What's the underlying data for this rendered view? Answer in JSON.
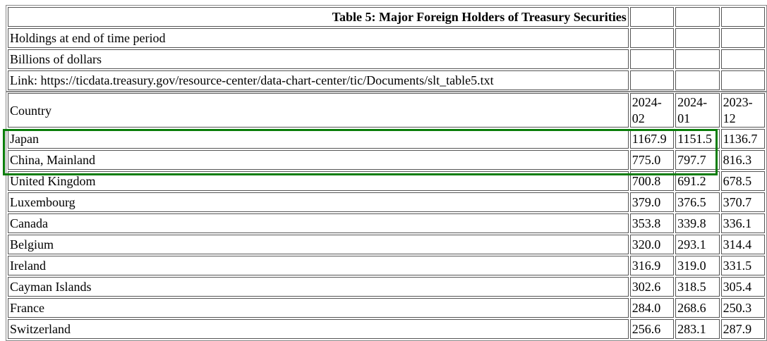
{
  "meta": {
    "title": "Table 5: Major Foreign Holders of Treasury Securities",
    "subtitle": "Holdings at end of time period",
    "units": "Billions of dollars",
    "link": "Link: https://ticdata.treasury.gov/resource-center/data-chart-center/tic/Documents/slt_table5.txt"
  },
  "columns": [
    "Country",
    "2024-02",
    "2024-01",
    "2023-12"
  ],
  "rows": [
    [
      "Japan",
      "1167.9",
      "1151.5",
      "1136.7"
    ],
    [
      "China, Mainland",
      "775.0",
      "797.7",
      "816.3"
    ],
    [
      "United Kingdom",
      "700.8",
      "691.2",
      "678.5"
    ],
    [
      "Luxembourg",
      "379.0",
      "376.5",
      "370.7"
    ],
    [
      "Canada",
      "353.8",
      "339.8",
      "336.1"
    ],
    [
      "Belgium",
      "320.0",
      "293.1",
      "314.4"
    ],
    [
      "Ireland",
      "316.9",
      "319.0",
      "331.5"
    ],
    [
      "Cayman Islands",
      "302.6",
      "318.5",
      "305.4"
    ],
    [
      "France",
      "284.0",
      "268.6",
      "250.3"
    ],
    [
      "Switzerland",
      "256.6",
      "283.1",
      "287.9"
    ]
  ],
  "highlight": {
    "color": "#0a7d0a",
    "rows": [
      "Japan",
      "China, Mainland"
    ]
  }
}
